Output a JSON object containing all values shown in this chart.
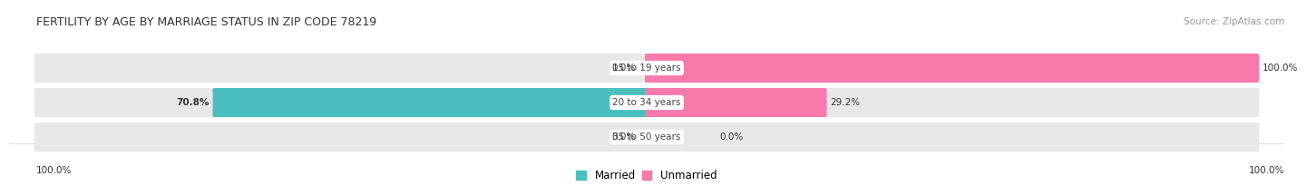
{
  "title": "FERTILITY BY AGE BY MARRIAGE STATUS IN ZIP CODE 78219",
  "source": "Source: ZipAtlas.com",
  "categories": [
    "15 to 19 years",
    "20 to 34 years",
    "35 to 50 years"
  ],
  "married_values": [
    0.0,
    70.8,
    0.0
  ],
  "unmarried_values": [
    100.0,
    29.2,
    0.0
  ],
  "married_color": "#4bbfbf",
  "unmarried_color": "#f87aaa",
  "bar_bg_color": "#e8e8e8",
  "bar_height": 0.55,
  "title_fontsize": 9,
  "label_fontsize": 7.5,
  "annotation_fontsize": 7.5,
  "source_fontsize": 7.5,
  "legend_fontsize": 8.5,
  "bottom_left_label": "100.0%",
  "bottom_right_label": "100.0%"
}
